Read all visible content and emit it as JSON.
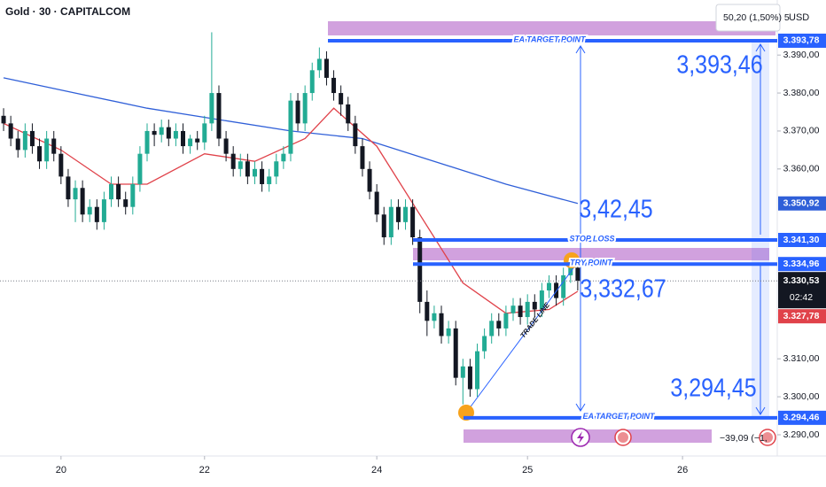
{
  "chart_data": {
    "type": "candlestick",
    "title": "Gold · 30 · CAPITALCOM",
    "open": [
      3374,
      3372,
      3368,
      3365,
      3370,
      3366,
      3362,
      3368,
      3364,
      3358,
      3352,
      3355,
      3348,
      3350,
      3346,
      3352,
      3356,
      3352,
      3350,
      3356,
      3364,
      3370,
      3369,
      3371,
      3368,
      3370,
      3366,
      3368,
      3367,
      3372,
      3380,
      3368,
      3364,
      3360,
      3362,
      3358,
      3360,
      3356,
      3358,
      3362,
      3364,
      3378,
      3372,
      3380,
      3386,
      3389,
      3384,
      3380,
      3377,
      3372,
      3366,
      3360,
      3354,
      3348,
      3342,
      3350,
      3346,
      3350,
      3342,
      3325,
      3320,
      3322,
      3316,
      3318,
      3305,
      3308,
      3302,
      3312,
      3316,
      3320,
      3318,
      3322,
      3324,
      3321,
      3325,
      3323,
      3328,
      3330,
      3326,
      3332,
      3334
    ],
    "high": [
      3376,
      3374,
      3370,
      3372,
      3372,
      3368,
      3370,
      3370,
      3366,
      3360,
      3357,
      3357,
      3352,
      3352,
      3354,
      3358,
      3358,
      3354,
      3358,
      3366,
      3372,
      3372,
      3373,
      3373,
      3372,
      3372,
      3369,
      3370,
      3374,
      3396,
      3382,
      3370,
      3366,
      3364,
      3364,
      3362,
      3362,
      3360,
      3364,
      3366,
      3380,
      3380,
      3382,
      3388,
      3392,
      3391,
      3386,
      3382,
      3379,
      3374,
      3368,
      3362,
      3356,
      3350,
      3352,
      3352,
      3352,
      3352,
      3344,
      3328,
      3324,
      3324,
      3320,
      3320,
      3310,
      3310,
      3314,
      3318,
      3322,
      3322,
      3324,
      3326,
      3326,
      3327,
      3327,
      3330,
      3332,
      3332,
      3334,
      3337,
      3336
    ],
    "low": [
      3370,
      3366,
      3363,
      3363,
      3364,
      3360,
      3360,
      3362,
      3356,
      3350,
      3346,
      3346,
      3346,
      3344,
      3344,
      3350,
      3350,
      3348,
      3348,
      3354,
      3362,
      3366,
      3367,
      3366,
      3366,
      3364,
      3364,
      3365,
      3365,
      3370,
      3366,
      3362,
      3358,
      3358,
      3356,
      3356,
      3354,
      3354,
      3356,
      3360,
      3362,
      3370,
      3370,
      3378,
      3384,
      3382,
      3378,
      3374,
      3370,
      3364,
      3358,
      3352,
      3346,
      3340,
      3340,
      3344,
      3344,
      3340,
      3322,
      3316,
      3318,
      3314,
      3314,
      3303,
      3298,
      3300,
      3300,
      3310,
      3314,
      3316,
      3316,
      3320,
      3319,
      3319,
      3321,
      3321,
      3326,
      3324,
      3324,
      3330,
      3328
    ],
    "close": [
      3372,
      3368,
      3365,
      3370,
      3366,
      3362,
      3368,
      3364,
      3358,
      3352,
      3355,
      3348,
      3350,
      3346,
      3352,
      3356,
      3352,
      3350,
      3356,
      3364,
      3370,
      3369,
      3371,
      3368,
      3370,
      3366,
      3368,
      3367,
      3372,
      3380,
      3368,
      3364,
      3360,
      3362,
      3358,
      3360,
      3356,
      3358,
      3362,
      3364,
      3378,
      3372,
      3380,
      3386,
      3389,
      3384,
      3380,
      3377,
      3372,
      3366,
      3360,
      3354,
      3348,
      3342,
      3350,
      3346,
      3350,
      3342,
      3325,
      3320,
      3322,
      3316,
      3318,
      3305,
      3308,
      3302,
      3312,
      3316,
      3320,
      3318,
      3322,
      3324,
      3321,
      3325,
      3323,
      3328,
      3330,
      3326,
      3332,
      3334,
      3330.53
    ],
    "up_color": "#22ab94",
    "down_color": "#131722",
    "last_price_label": "3.330,53",
    "countdown": "02:42",
    "series": [
      {
        "color": "#2f5fd8",
        "x": [
          0,
          10,
          20,
          30,
          40,
          50,
          60,
          70,
          80
        ],
        "values": [
          3384,
          3380,
          3376,
          3373,
          3370,
          3368,
          3362,
          3356,
          3350.92
        ],
        "last_value_label": "3.350,92"
      },
      {
        "color": "#e0424a",
        "x": [
          0,
          8,
          15,
          20,
          28,
          35,
          42,
          46,
          52,
          58,
          64,
          70,
          76,
          80
        ],
        "values": [
          3372,
          3365,
          3356,
          3356,
          3364,
          3362,
          3368,
          3376,
          3366,
          3348,
          3330,
          3322,
          3323,
          3327.78
        ],
        "last_value_label": "3.327,78"
      }
    ],
    "xlim": [
      -0.5,
      107.8
    ],
    "xticks": [
      {
        "value": 8,
        "label": "20"
      },
      {
        "value": 28,
        "label": "22"
      },
      {
        "value": 52,
        "label": "24"
      },
      {
        "value": 73,
        "label": "25"
      },
      {
        "value": 94.6,
        "label": "26"
      }
    ],
    "ylim": [
      3284.4,
      3404.5
    ],
    "yticks": [
      {
        "value": 3290,
        "label": "3.290,00"
      },
      {
        "value": 3300,
        "label": "3.300,00"
      },
      {
        "value": 3310,
        "label": "3.310,00"
      },
      {
        "value": 3360,
        "label": "3.360,00"
      },
      {
        "value": 3370,
        "label": "3.370,00"
      },
      {
        "value": 3380,
        "label": "3.380,00"
      },
      {
        "value": 3390,
        "label": "3.390,00"
      }
    ],
    "levels": [
      {
        "text": "EA TARGET POINT",
        "value": 3393.78,
        "label": "3.393,78"
      },
      {
        "text": "STOP LOSS",
        "value": 3341.3,
        "label": "3.341,30"
      },
      {
        "text": "TRY POINT",
        "value": 3334.96,
        "label": "3.334,96"
      },
      {
        "text": "EA TARGET POINT",
        "value": 3294.46,
        "label": "3.294,46"
      }
    ],
    "annotations": [
      "3,393,46",
      "3,42,45",
      "3,332,67",
      "3,294,45",
      "TRADE LINE"
    ],
    "change_label": "50,20 (1,50%) 5",
    "currency": "USD",
    "bottom_change": "−39,09 (−1,"
  }
}
